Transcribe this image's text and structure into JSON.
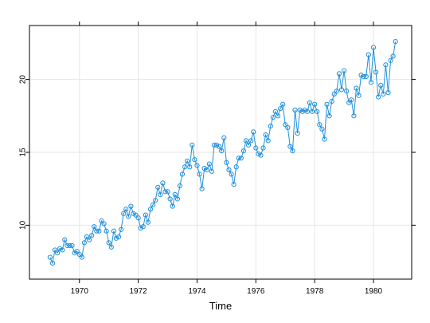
{
  "chart_data": {
    "type": "line",
    "title": "",
    "xlabel": "Time",
    "ylabel": "",
    "xlim": [
      1968.3,
      1981.3
    ],
    "ylim": [
      6.3,
      23.7
    ],
    "x_ticks": [
      1970,
      1972,
      1974,
      1976,
      1978,
      1980
    ],
    "y_ticks": [
      10,
      15,
      20
    ],
    "x_tick_labels": [
      "1970",
      "1972",
      "1974",
      "1976",
      "1978",
      "1980"
    ],
    "y_tick_labels": [
      "10",
      "15",
      "20"
    ],
    "grid": true,
    "legend": "none",
    "series": [
      {
        "color": "#1f8fdc",
        "marker": "open-circle",
        "x_start": 1969.0,
        "x_step": 0.08333333,
        "values": [
          7.8,
          7.4,
          8.3,
          8.1,
          8.4,
          8.3,
          9.0,
          8.6,
          8.6,
          8.6,
          8.1,
          8.2,
          8.0,
          7.8,
          8.8,
          9.2,
          9.0,
          9.3,
          9.9,
          9.6,
          9.6,
          10.3,
          10.1,
          9.6,
          8.8,
          8.5,
          9.6,
          9.1,
          9.2,
          9.7,
          10.8,
          11.1,
          10.6,
          11.3,
          10.8,
          10.7,
          10.5,
          9.8,
          9.9,
          10.7,
          10.2,
          11.1,
          11.4,
          11.7,
          12.6,
          12.1,
          12.9,
          12.3,
          12.3,
          11.8,
          11.3,
          12.1,
          11.8,
          12.7,
          13.5,
          14.0,
          14.4,
          14.0,
          15.5,
          14.5,
          14.1,
          13.5,
          12.5,
          13.9,
          13.8,
          14.2,
          13.7,
          15.5,
          15.5,
          15.4,
          15.1,
          16.0,
          14.3,
          13.8,
          13.5,
          12.8,
          14.0,
          14.6,
          14.6,
          15.1,
          15.8,
          15.5,
          15.8,
          16.4,
          15.3,
          14.9,
          14.8,
          15.3,
          16.2,
          15.8,
          16.8,
          17.4,
          17.8,
          17.5,
          18.0,
          18.3,
          16.9,
          16.7,
          15.4,
          15.1,
          17.9,
          16.3,
          17.9,
          17.8,
          17.9,
          17.8,
          18.4,
          17.8,
          18.3,
          17.8,
          16.9,
          16.6,
          15.9,
          18.3,
          17.5,
          18.5,
          19.0,
          19.2,
          20.4,
          19.3,
          20.6,
          19.2,
          18.4,
          18.6,
          17.5,
          19.4,
          18.9,
          20.3,
          20.2,
          20.2,
          21.7,
          19.8,
          22.2,
          20.5,
          18.8,
          19.6,
          19.0,
          21.0,
          19.1,
          21.3,
          21.6,
          22.6
        ]
      }
    ]
  }
}
